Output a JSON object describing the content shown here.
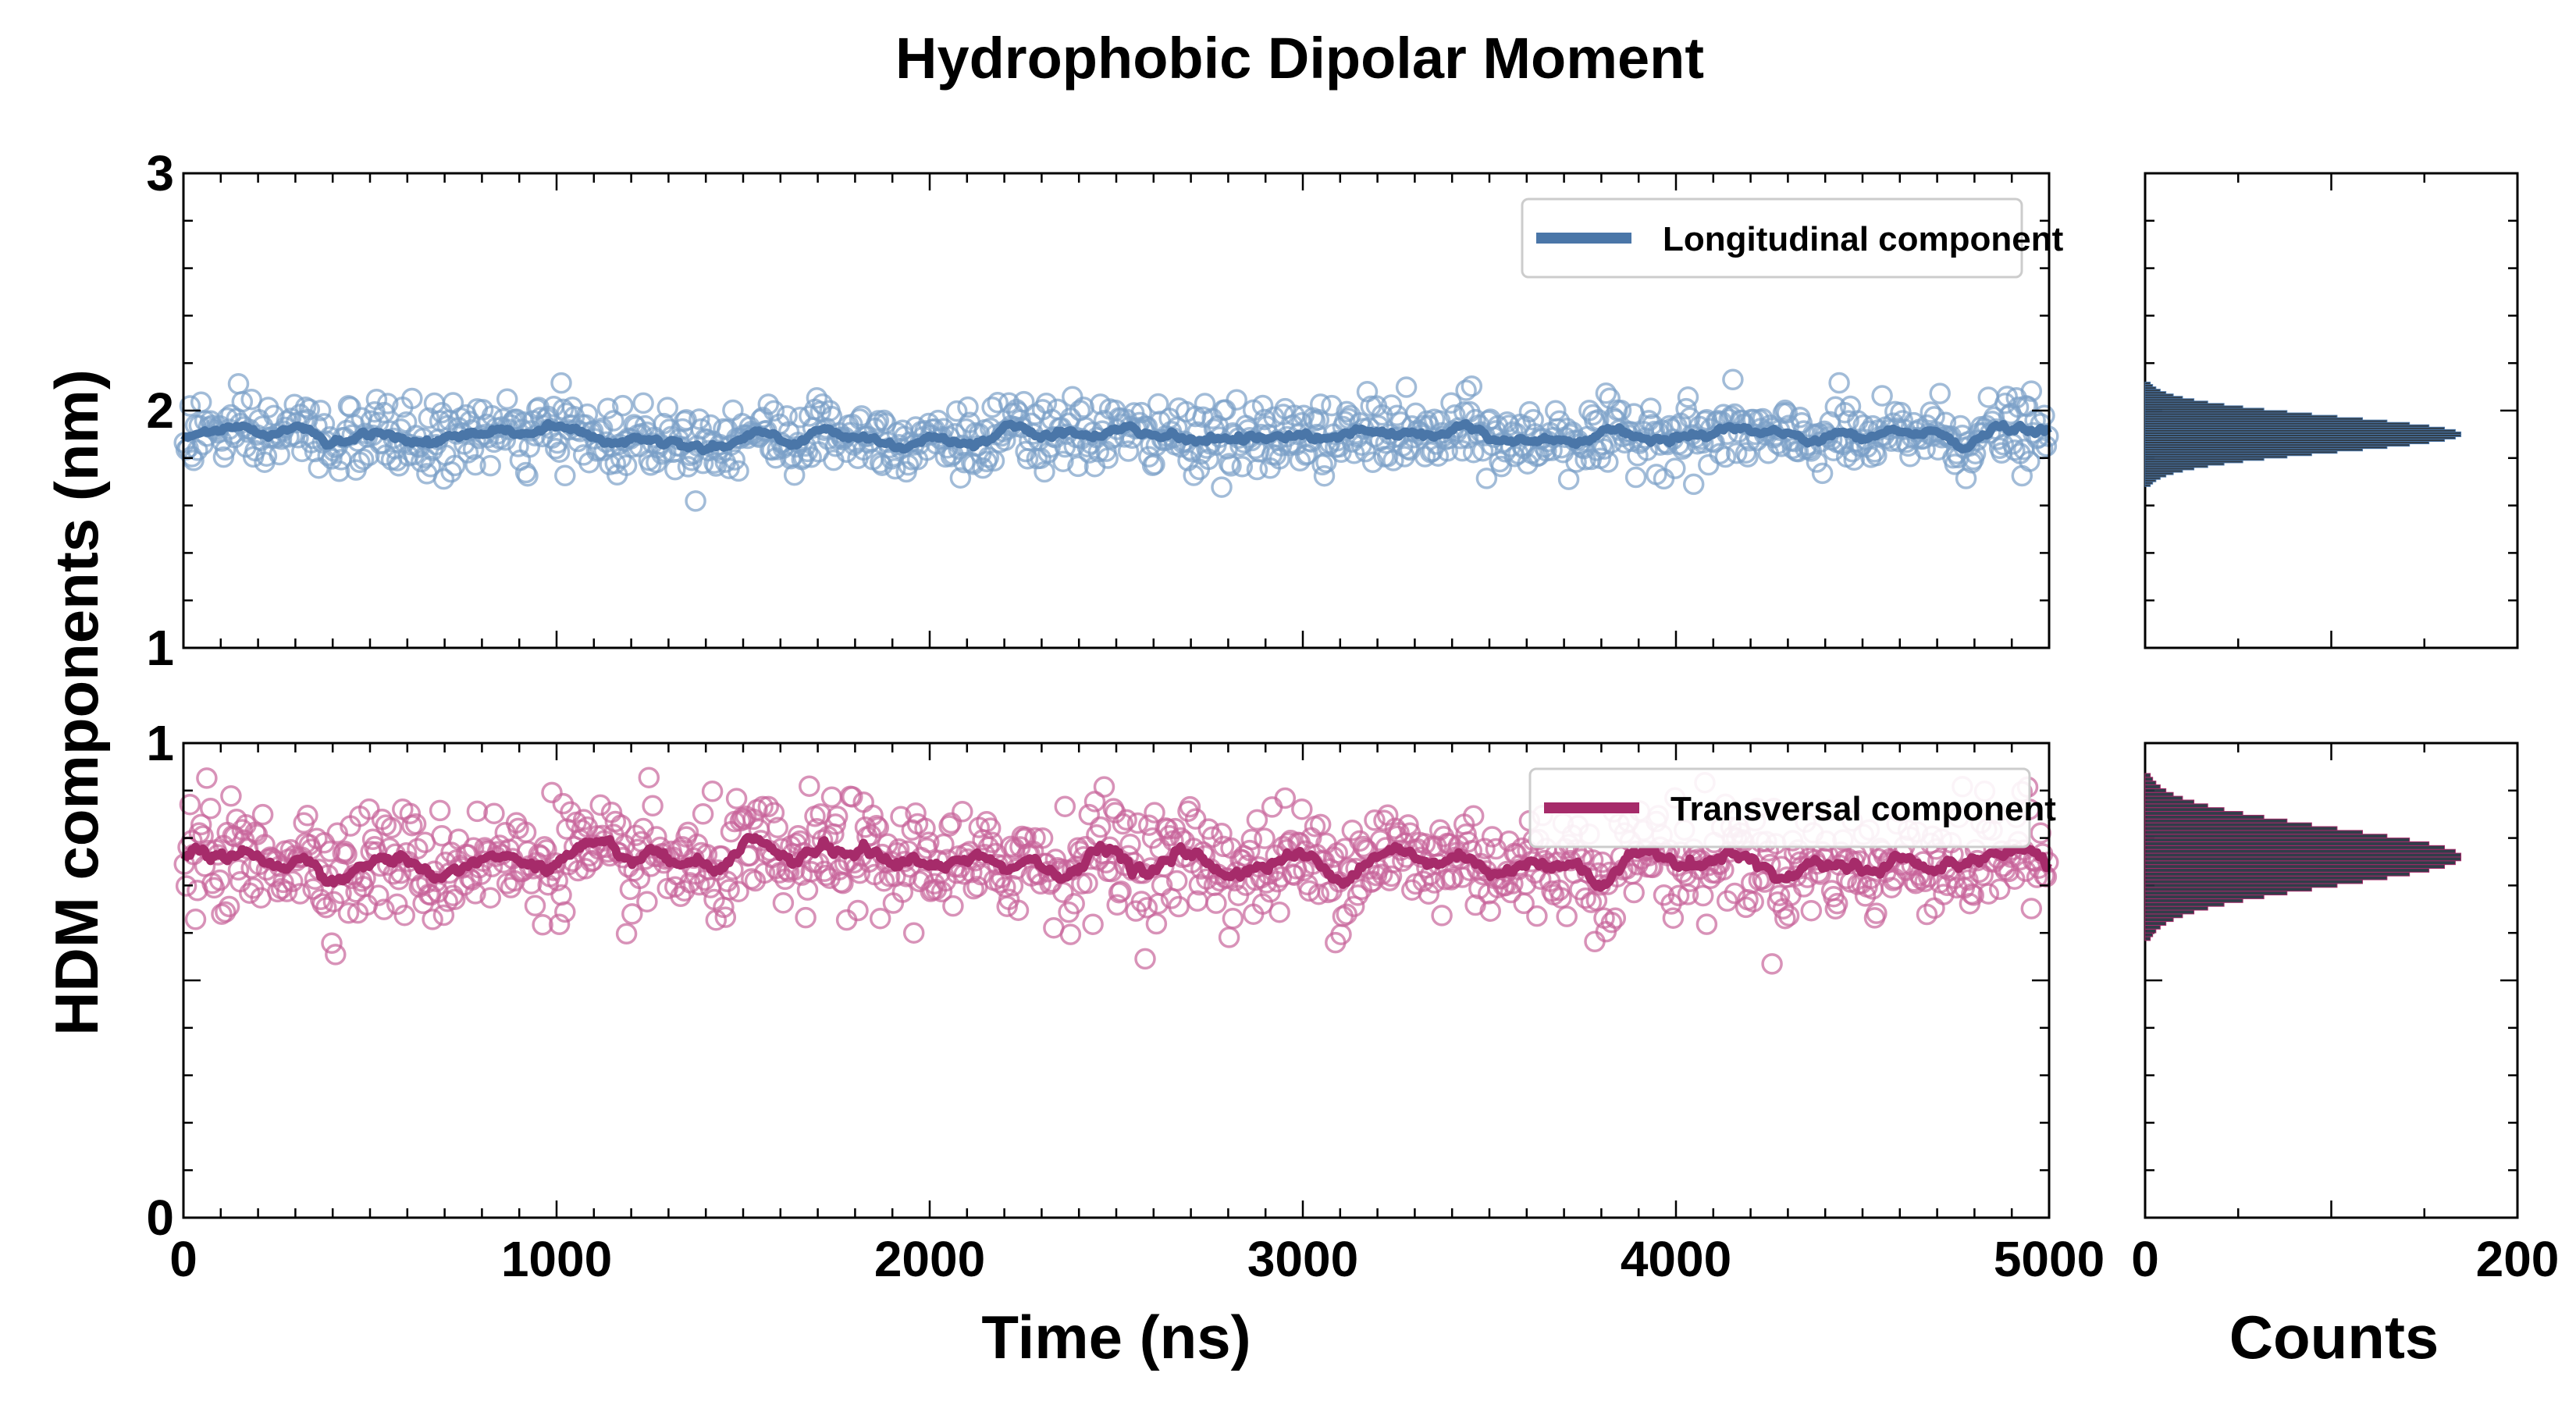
{
  "chart_data": {
    "type": "scatter",
    "title": "Hydrophobic Dipolar Moment",
    "xlabel": "Time (ns)",
    "ylabel": "HDM components (nm)",
    "hist_xlabel": "Counts",
    "xlim": [
      0,
      5000
    ],
    "x_ticks": [
      "0",
      "1000",
      "2000",
      "3000",
      "4000",
      "5000"
    ],
    "hist_xlim": [
      0,
      200
    ],
    "hist_ticks": [
      "0",
      "200"
    ],
    "panels": [
      {
        "name": "longitudinal",
        "legend": "Longitudinal component",
        "color": "#4a76a8",
        "scatter_color": "#7aa0c8",
        "ylim": [
          1,
          3
        ],
        "y_ticks": [
          "1",
          "2",
          "3"
        ],
        "mean": 1.89,
        "spread": 0.075,
        "n_points": 1000,
        "hist_peak_value": 1.9,
        "hist_peak_count": 170
      },
      {
        "name": "transversal",
        "legend": "Transversal component",
        "color": "#a62b6a",
        "scatter_color": "#c8649a",
        "ylim": [
          0,
          1
        ],
        "y_ticks": [
          "0",
          "1"
        ],
        "mean": 0.75,
        "spread": 0.06,
        "n_points": 1000,
        "hist_peak_value": 0.76,
        "hist_peak_count": 170
      }
    ]
  }
}
